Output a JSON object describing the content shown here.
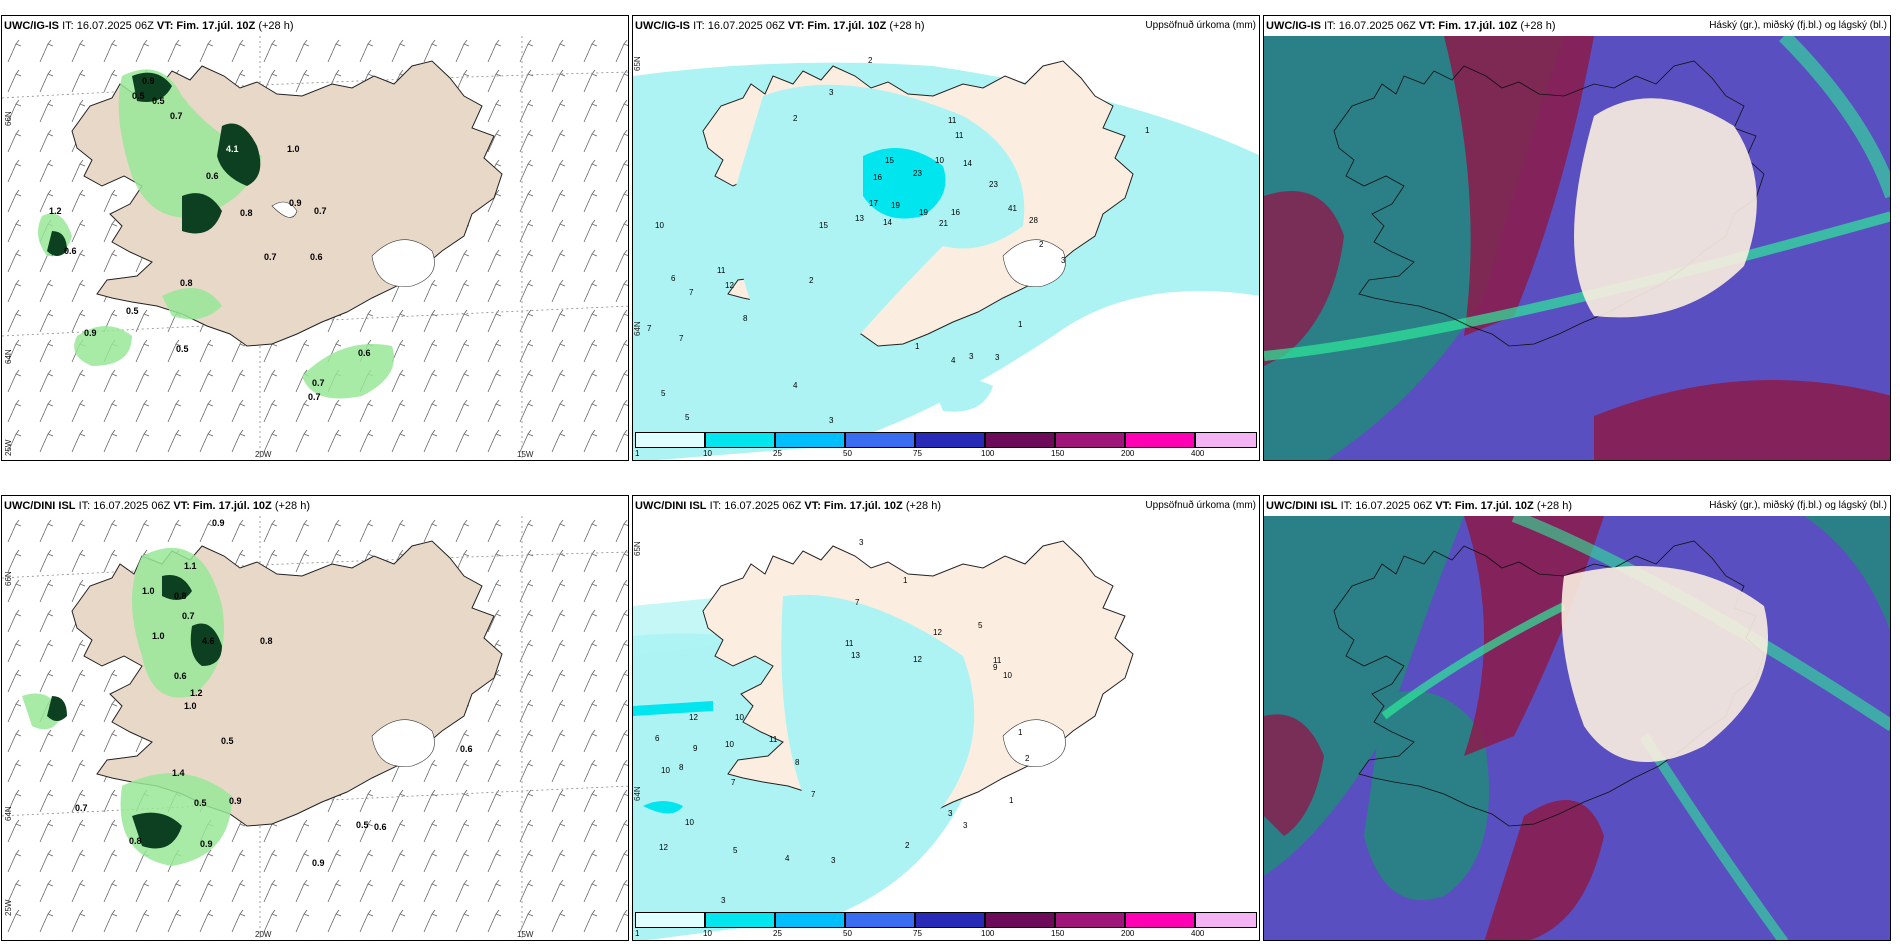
{
  "panels": [
    {
      "model": "UWC/IG-IS",
      "it": "IT: 16.07.2025 06Z",
      "vt": "VT: Fim. 17.júl. 10Z",
      "lead": "(+28 h)",
      "right": ""
    },
    {
      "model": "UWC/IG-IS",
      "it": "IT: 16.07.2025 06Z",
      "vt": "VT: Fim. 17.júl. 10Z",
      "lead": "(+28 h)",
      "right": "Uppsöfnuð úrkoma (mm)"
    },
    {
      "model": "UWC/IG-IS",
      "it": "IT: 16.07.2025 06Z",
      "vt": "VT: Fim. 17.júl. 10Z",
      "lead": "(+28 h)",
      "right": "Háský (gr.), miðský (fj.bl.) og lágský (bl.)"
    },
    {
      "model": "UWC/DINI ISL",
      "it": "IT: 16.07.2025 06Z",
      "vt": "VT: Fim. 17.júl. 10Z",
      "lead": "(+28 h)",
      "right": ""
    },
    {
      "model": "UWC/DINI ISL",
      "it": "IT: 16.07.2025 06Z",
      "vt": "VT: Fim. 17.júl. 10Z",
      "lead": "(+28 h)",
      "right": "Uppsöfnuð úrkoma (mm)"
    },
    {
      "model": "UWC/DINI ISL",
      "it": "IT: 16.07.2025 06Z",
      "vt": "VT: Fim. 17.júl. 10Z",
      "lead": "(+28 h)",
      "right": "Háský (gr.), miðský (fj.bl.) og lágský (bl.)"
    }
  ],
  "axes": {
    "lat66": "66N",
    "lat64": "64N",
    "lon25": "25W",
    "lon20": "20W",
    "lon15": "15W",
    "lat65": "65N"
  },
  "colorbar": {
    "labels": [
      "1",
      "10",
      "25",
      "50",
      "75",
      "100",
      "150",
      "200",
      "400"
    ],
    "colors": [
      "#e0ffff",
      "#00e5ee",
      "#00bfff",
      "#3a6cf0",
      "#2a2ab8",
      "#6e0a5a",
      "#a0157a",
      "#ff00b4",
      "#f4b4f4"
    ]
  },
  "colors": {
    "land": "#fbeee0",
    "sea": "#ffffff",
    "precip_light": "#aef3f3",
    "precip_mid": "#00e5ee",
    "dark_green": "#0d4020",
    "light_green": "#98e898",
    "cloud_purple": "#6f55c8",
    "cloud_teal": "#2b7f86",
    "cloud_red": "#8c1a4a",
    "cloud_green": "#2ee89a"
  },
  "values": {
    "p1": [
      "0.9",
      "0.5",
      "0.5",
      "0.7",
      "4.1",
      "1.0",
      "0.6",
      "0.8",
      "0.9",
      "0.7",
      "0.7",
      "0.6",
      "1.2",
      "0.6",
      "0.8",
      "0.5",
      "0.5",
      "0.6",
      "0.7",
      "0.7",
      "0.9"
    ],
    "p2": [
      "2",
      "3",
      "2",
      "11",
      "11",
      "15",
      "10",
      "14",
      "16",
      "23",
      "23",
      "17",
      "19",
      "19",
      "16",
      "41",
      "28",
      "13",
      "14",
      "21",
      "10",
      "7",
      "6",
      "7",
      "11",
      "12",
      "8",
      "7",
      "5",
      "4",
      "5",
      "3",
      "2",
      "1",
      "1",
      "4",
      "3",
      "3",
      "2",
      "1",
      "3",
      "15"
    ],
    "p4": [
      "0.9",
      "1.1",
      "1.0",
      "0.8",
      "1.0",
      "0.7",
      "4.6",
      "0.8",
      "0.6",
      "1.0",
      "1.2",
      "0.5",
      "1.4",
      "0.7",
      "0.5",
      "0.9",
      "0.9",
      "0.8",
      "0.6",
      "0.5",
      "0.6",
      "0.9"
    ],
    "p5": [
      "3",
      "1",
      "7",
      "11",
      "13",
      "12",
      "5",
      "9",
      "10",
      "11",
      "12",
      "10",
      "9",
      "10",
      "6",
      "8",
      "7",
      "10",
      "10",
      "5",
      "4",
      "3",
      "2",
      "1",
      "12",
      "3",
      "8",
      "7",
      "12",
      "11",
      "1",
      "2",
      "3",
      "3"
    ]
  }
}
